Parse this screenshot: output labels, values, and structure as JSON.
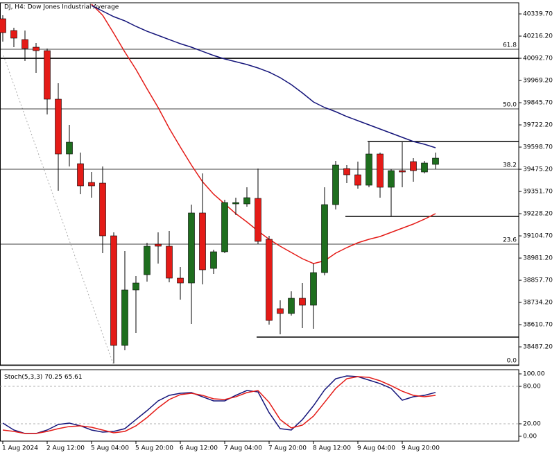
{
  "chart_data": [
    {
      "type": "candlestick",
      "title": "DJ, H4:  Dow Jones Industrial Average",
      "categories": [
        "1 Aug 2024",
        null,
        null,
        null,
        "2 Aug 12:00",
        null,
        null,
        null,
        "5 Aug 04:00",
        null,
        null,
        null,
        "5 Aug 20:00",
        null,
        null,
        null,
        "6 Aug 12:00",
        null,
        null,
        null,
        "7 Aug 04:00",
        null,
        null,
        null,
        "7 Aug 20:00",
        null,
        null,
        null,
        "8 Aug 12:00",
        null,
        null,
        null,
        "9 Aug 04:00",
        null,
        null,
        null,
        "9 Aug 20:00",
        null,
        null,
        null
      ],
      "open": [
        40312.8,
        40247.2,
        40197.0,
        40154.6,
        40135.3,
        39865.2,
        39560.3,
        39506.3,
        39402.1,
        39398.2,
        39104.9,
        38495.2,
        38803.9,
        38888.8,
        39058.6,
        39047.1,
        38869.5,
        38842.5,
        39232.3,
        38923.6,
        39016.2,
        39282.5,
        39282.5,
        39313.3,
        39085.6,
        38699.7,
        38672.7,
        38757.6,
        38719.0,
        38900.4,
        39278.6,
        39479.3,
        39444.5,
        39386.6,
        39560.3,
        39375.1,
        39467.7,
        39517.9,
        39460.0,
        39502.4
      ],
      "high": [
        40332.1,
        40262.6,
        40247.2,
        40177.7,
        40146.9,
        39953.9,
        39722.4,
        39568.0,
        39460.0,
        39490.8,
        39124.2,
        39020.0,
        38881.1,
        39066.3,
        39124.2,
        39132.0,
        38931.3,
        39278.6,
        39452.2,
        39027.8,
        39305.6,
        39317.2,
        39375.1,
        39479.3,
        39104.9,
        38746.0,
        38796.2,
        38842.5,
        38950.6,
        39375.1,
        39521.7,
        39498.6,
        39517.9,
        39625.9,
        39568.0,
        39475.4,
        39625.9,
        39537.1,
        39521.7,
        39568.0
      ],
      "low": [
        40185.5,
        40154.6,
        40077.4,
        40011.8,
        39780.3,
        39355.8,
        39490.8,
        39336.5,
        39317.2,
        39008.5,
        38394.9,
        38468.2,
        38564.7,
        38850.2,
        38950.6,
        38846.4,
        38749.9,
        38614.8,
        38834.8,
        38892.7,
        39008.5,
        39220.7,
        39267.0,
        39058.6,
        38611.0,
        38557.0,
        38661.2,
        38591.7,
        38587.8,
        38885.0,
        39251.6,
        39398.2,
        39367.4,
        39375.1,
        39317.2,
        39213.0,
        39375.1,
        39405.9,
        39452.2,
        39475.4
      ],
      "close": [
        40235.6,
        40204.8,
        40146.9,
        40135.3,
        39865.2,
        39560.3,
        39625.9,
        39382.8,
        39382.8,
        39104.9,
        38495.2,
        38803.9,
        38842.5,
        39047.1,
        39047.1,
        38869.5,
        38842.5,
        39232.3,
        38915.8,
        39016.2,
        39290.2,
        39290.2,
        39317.2,
        39074.1,
        38634.1,
        38672.7,
        38757.6,
        38719.0,
        38900.4,
        39278.6,
        39498.6,
        39444.5,
        39386.6,
        39560.3,
        39375.1,
        39467.7,
        39460.0,
        39467.7,
        39510.1,
        39537.1
      ],
      "up_color": "#1e6e1e",
      "down_color": "#e41b17",
      "series": [
        {
          "color": "#e41b17",
          "values": [
            null,
            null,
            null,
            null,
            null,
            null,
            null,
            null,
            40393.8,
            40332.1,
            40231.8,
            40127.6,
            40031.1,
            39923.0,
            39818.9,
            39703.1,
            39598.9,
            39498.6,
            39405.9,
            39336.5,
            39282.5,
            39228.4,
            39182.1,
            39132.0,
            39085.6,
            39047.1,
            39012.3,
            38977.6,
            38950.6,
            38966.0,
            39008.5,
            39039.3,
            39066.3,
            39085.6,
            39101.1,
            39124.2,
            39147.4,
            39170.5,
            39197.6,
            39228.4
          ]
        },
        {
          "color": "#14147a",
          "values": [
            null,
            null,
            null,
            null,
            null,
            null,
            null,
            null,
            40386.1,
            40355.3,
            40324.4,
            40301.2,
            40270.4,
            40243.3,
            40220.2,
            40197.0,
            40173.9,
            40154.6,
            40131.4,
            40108.3,
            40089.0,
            40073.5,
            40058.1,
            40038.8,
            40015.7,
            39984.8,
            39946.2,
            39899.9,
            39849.7,
            39818.9,
            39795.7,
            39768.7,
            39745.5,
            39722.4,
            39699.2,
            39676.1,
            39652.9,
            39629.8,
            39614.3,
            39595.0
          ]
        }
      ],
      "levels": [
        {
          "label": "61.8",
          "value": 40143.0
        },
        {
          "label": "50.0",
          "value": 39811.1
        },
        {
          "label": "38.2",
          "value": 39475.4
        },
        {
          "label": "23.6",
          "value": 39058.6
        },
        {
          "label": "0.0",
          "value": 38387.2
        }
      ],
      "hlines": [
        40092.7,
        39629.8,
        39213.0,
        38541.5
      ],
      "ylim": [
        38383.3,
        40401.6
      ],
      "yticks": [
        {
          "value": 40339.7,
          "label": "40339.70"
        },
        {
          "value": 40216.2,
          "label": "40216.20"
        },
        {
          "value": 40092.7,
          "label": "40092.70"
        },
        {
          "value": 39969.2,
          "label": "39969.20"
        },
        {
          "value": 39845.7,
          "label": "39845.70"
        },
        {
          "value": 39722.2,
          "label": "39722.20"
        },
        {
          "value": 39598.7,
          "label": "39598.70"
        },
        {
          "value": 39475.2,
          "label": "39475.20"
        },
        {
          "value": 39351.7,
          "label": "39351.70"
        },
        {
          "value": 39228.2,
          "label": "39228.20"
        },
        {
          "value": 39104.7,
          "label": "39104.70"
        },
        {
          "value": 38981.2,
          "label": "38981.20"
        },
        {
          "value": 38857.7,
          "label": "38857.70"
        },
        {
          "value": 38734.2,
          "label": "38734.20"
        },
        {
          "value": 38610.7,
          "label": "38610.70"
        },
        {
          "value": 38487.2,
          "label": "38487.20"
        }
      ]
    },
    {
      "type": "line",
      "title": "Stoch(5,3,3)",
      "series": [
        {
          "color": "#14147a",
          "values": [
            21.1,
            10.0,
            4.4,
            4.4,
            10.0,
            18.9,
            21.1,
            16.7,
            10.0,
            6.7,
            7.8,
            12.2,
            26.7,
            41.1,
            56.7,
            65.6,
            68.9,
            70.0,
            63.3,
            56.7,
            56.7,
            65.6,
            73.3,
            71.1,
            37.8,
            12.2,
            10.0,
            26.7,
            48.9,
            74.4,
            92.2,
            96.7,
            95.6,
            90.0,
            84.4,
            76.7,
            57.8,
            63.3,
            65.6,
            70.25
          ]
        },
        {
          "color": "#e41b17",
          "values": [
            10.0,
            7.8,
            4.4,
            4.4,
            7.8,
            12.2,
            15.6,
            16.7,
            14.4,
            10.0,
            5.6,
            7.8,
            16.7,
            30.0,
            45.6,
            58.9,
            66.7,
            68.9,
            65.6,
            60.0,
            58.9,
            63.3,
            70.0,
            73.3,
            54.4,
            26.7,
            13.3,
            17.8,
            32.2,
            54.4,
            76.7,
            92.2,
            95.6,
            94.4,
            88.9,
            81.1,
            72.2,
            65.6,
            63.3,
            65.61
          ]
        }
      ],
      "levels": [
        80,
        20
      ],
      "ylim": [
        -7.8,
        106.7
      ],
      "yticks": [
        {
          "value": 100,
          "label": "100.00"
        },
        {
          "value": 80,
          "label": "80.00"
        },
        {
          "value": 20,
          "label": "20.00"
        },
        {
          "value": 0,
          "label": "0.00"
        }
      ]
    }
  ]
}
